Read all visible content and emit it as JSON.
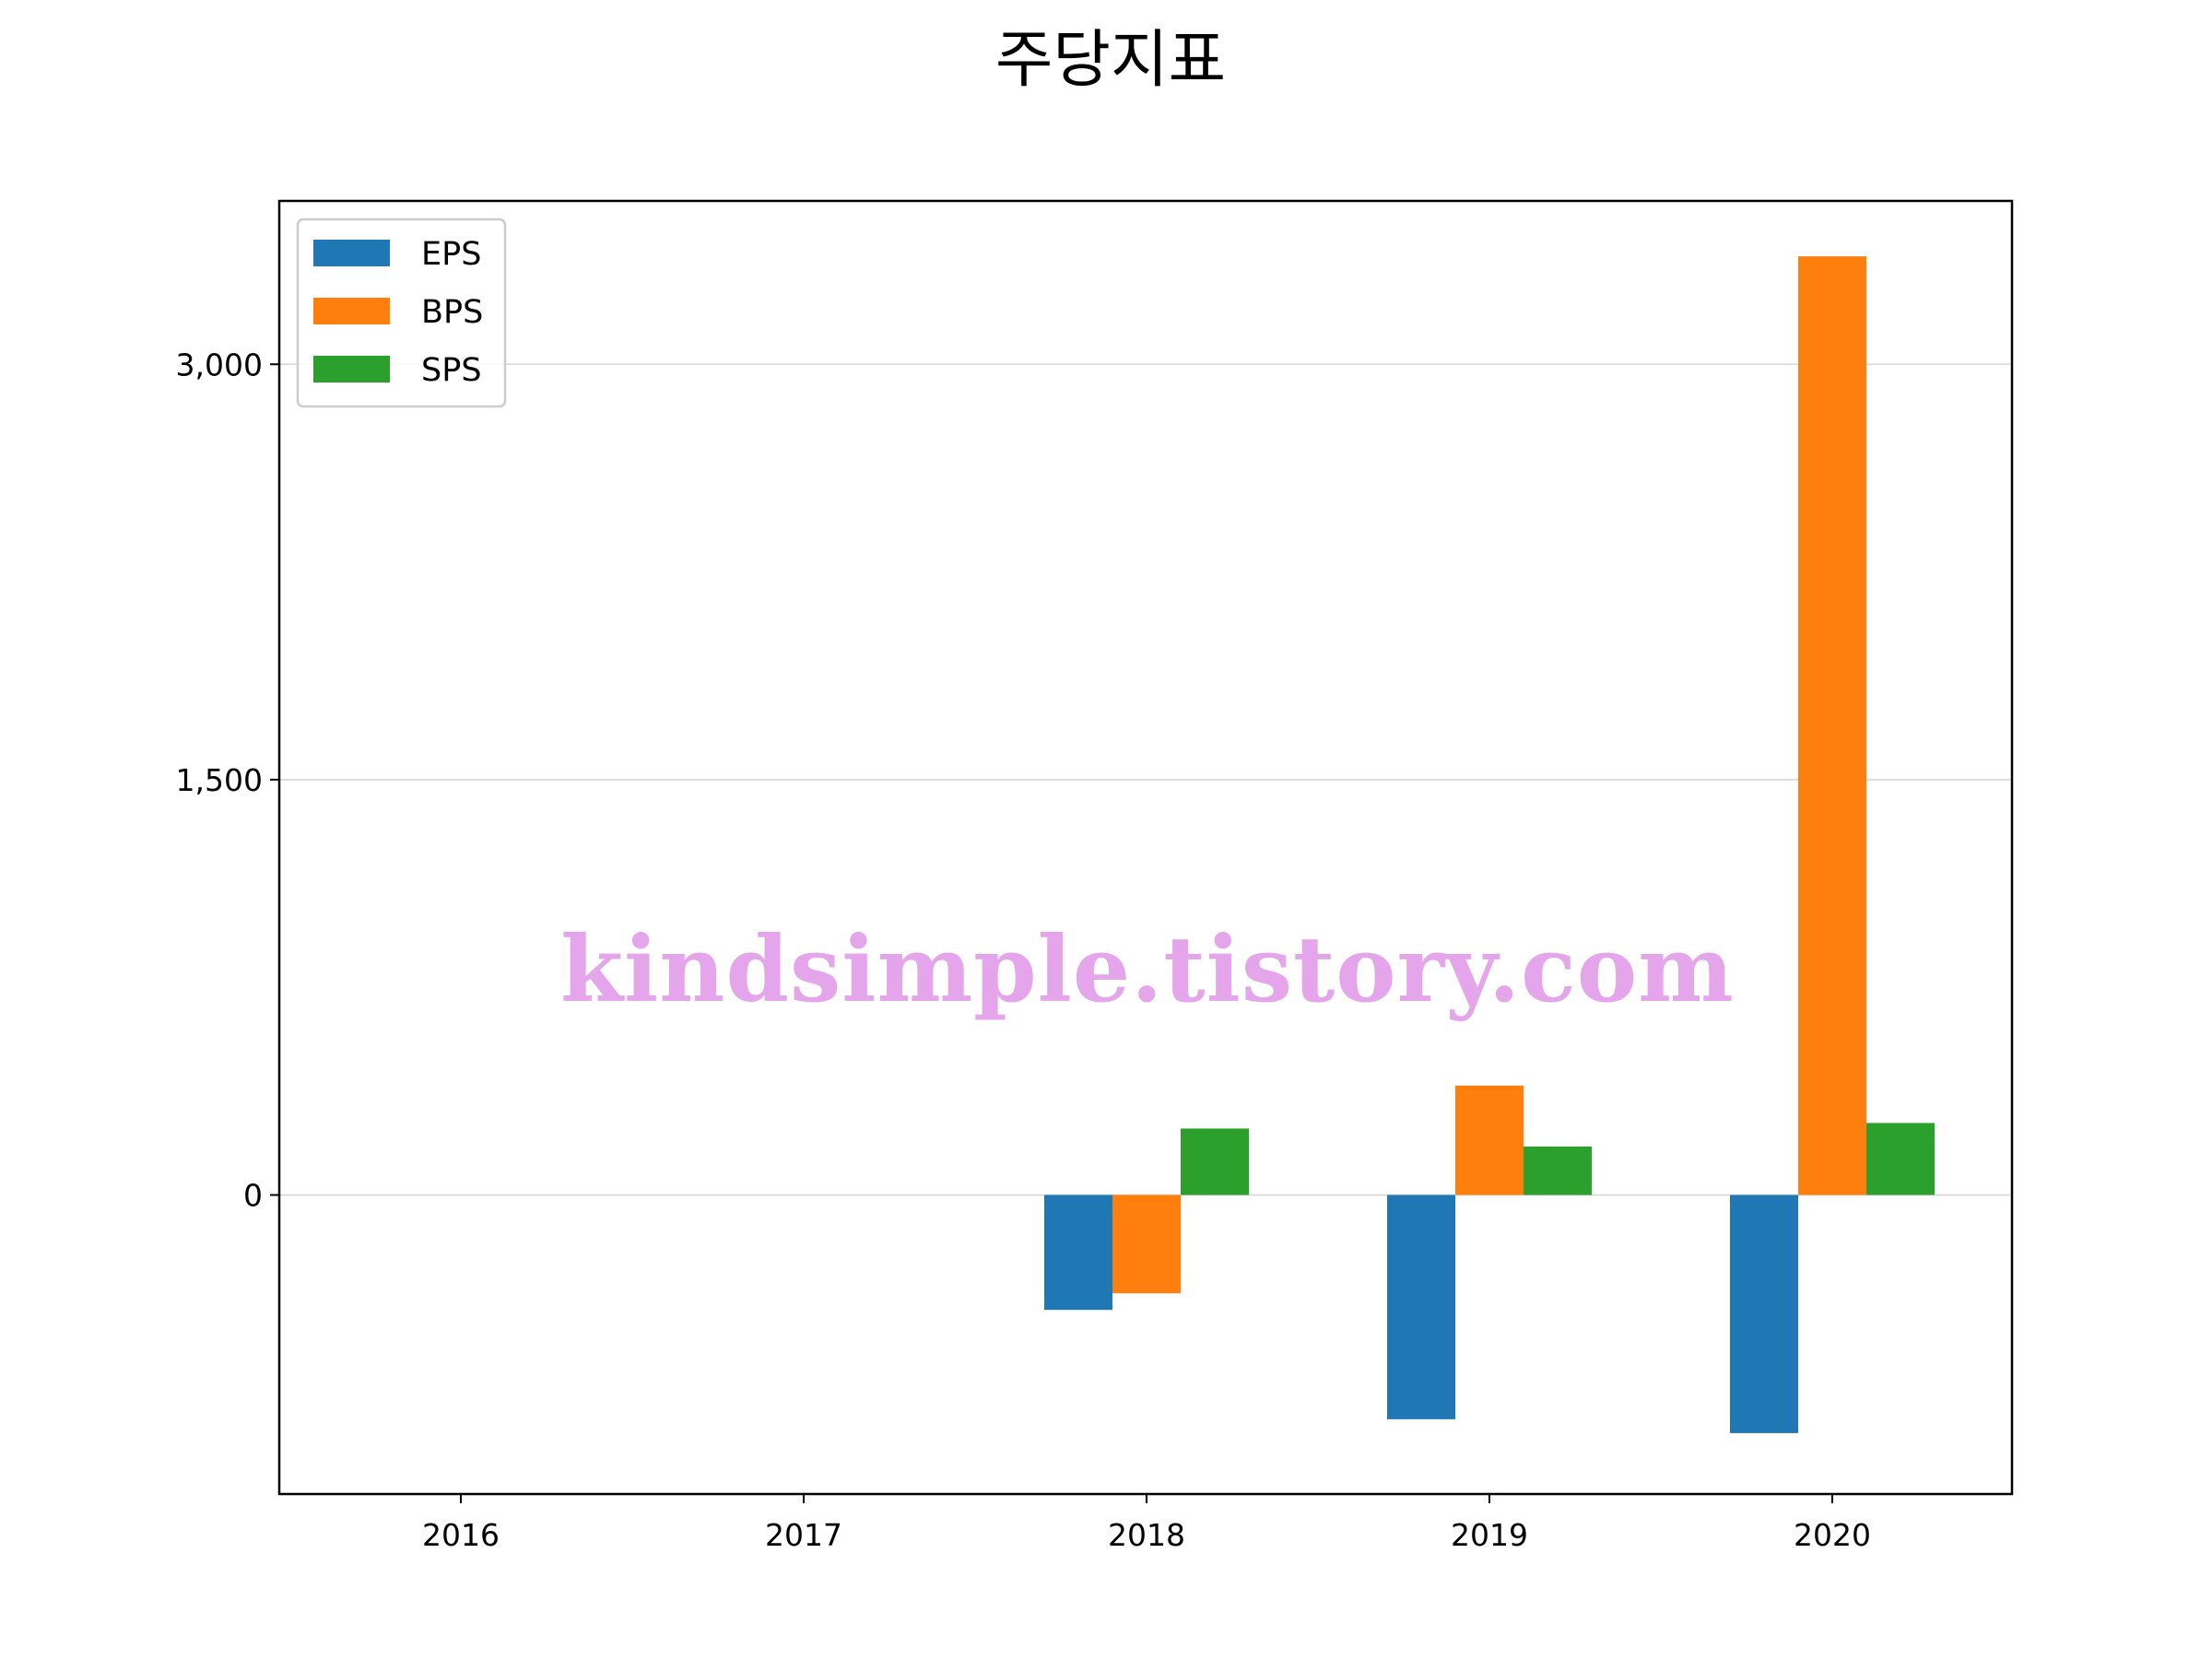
{
  "chart_data": {
    "type": "bar",
    "title": "주당지표",
    "xlabel": "",
    "ylabel": "",
    "categories": [
      "2016",
      "2017",
      "2018",
      "2019",
      "2020"
    ],
    "series": [
      {
        "name": "EPS",
        "color": "#1f77b4",
        "values": [
          null,
          null,
          -415,
          -810,
          -860
        ]
      },
      {
        "name": "BPS",
        "color": "#ff7f0e",
        "values": [
          null,
          null,
          -355,
          395,
          3390
        ]
      },
      {
        "name": "SPS",
        "color": "#2ca02c",
        "values": [
          null,
          null,
          240,
          175,
          260
        ]
      }
    ],
    "ylim": [
      -1080,
      3590
    ],
    "yticks": [
      0,
      1500,
      3000
    ],
    "ytick_labels": [
      "0",
      "1,500",
      "3,000"
    ],
    "grid": "y",
    "legend_position": "top-left"
  },
  "watermark": {
    "text": "kindsimple.tistory.com",
    "color": "#e4a5eb"
  }
}
